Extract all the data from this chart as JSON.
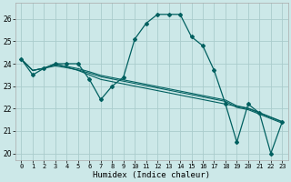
{
  "xlabel": "Humidex (Indice chaleur)",
  "xlim": [
    -0.5,
    23.5
  ],
  "ylim": [
    19.7,
    26.7
  ],
  "yticks": [
    20,
    21,
    22,
    23,
    24,
    25,
    26
  ],
  "xticks": [
    0,
    1,
    2,
    3,
    4,
    5,
    6,
    7,
    8,
    9,
    10,
    11,
    12,
    13,
    14,
    15,
    16,
    17,
    18,
    19,
    20,
    21,
    22,
    23
  ],
  "bg_color": "#cce8e8",
  "grid_color": "#aacccc",
  "line_color": "#006060",
  "main_series": [
    24.2,
    23.5,
    23.8,
    24.0,
    24.0,
    24.0,
    23.3,
    22.4,
    23.0,
    23.4,
    25.1,
    25.8,
    26.2,
    26.2,
    26.2,
    25.2,
    24.8,
    23.7,
    22.2,
    20.5,
    22.2,
    21.8,
    20.0,
    21.4
  ],
  "trend1": [
    24.2,
    23.7,
    23.8,
    24.0,
    23.85,
    23.7,
    23.5,
    23.3,
    23.2,
    23.1,
    23.0,
    22.9,
    22.8,
    22.7,
    22.6,
    22.5,
    22.4,
    22.3,
    22.2,
    22.1,
    22.0,
    21.8,
    21.6,
    21.4
  ],
  "trend2": [
    24.2,
    23.7,
    23.8,
    23.9,
    23.82,
    23.72,
    23.58,
    23.42,
    23.32,
    23.22,
    23.12,
    23.02,
    22.92,
    22.82,
    22.72,
    22.62,
    22.52,
    22.42,
    22.32,
    22.05,
    21.95,
    21.75,
    21.55,
    21.35
  ],
  "trend3": [
    24.2,
    23.7,
    23.8,
    23.95,
    23.88,
    23.78,
    23.64,
    23.48,
    23.38,
    23.28,
    23.18,
    23.08,
    22.98,
    22.88,
    22.78,
    22.68,
    22.58,
    22.48,
    22.38,
    22.12,
    22.02,
    21.82,
    21.62,
    21.42
  ]
}
